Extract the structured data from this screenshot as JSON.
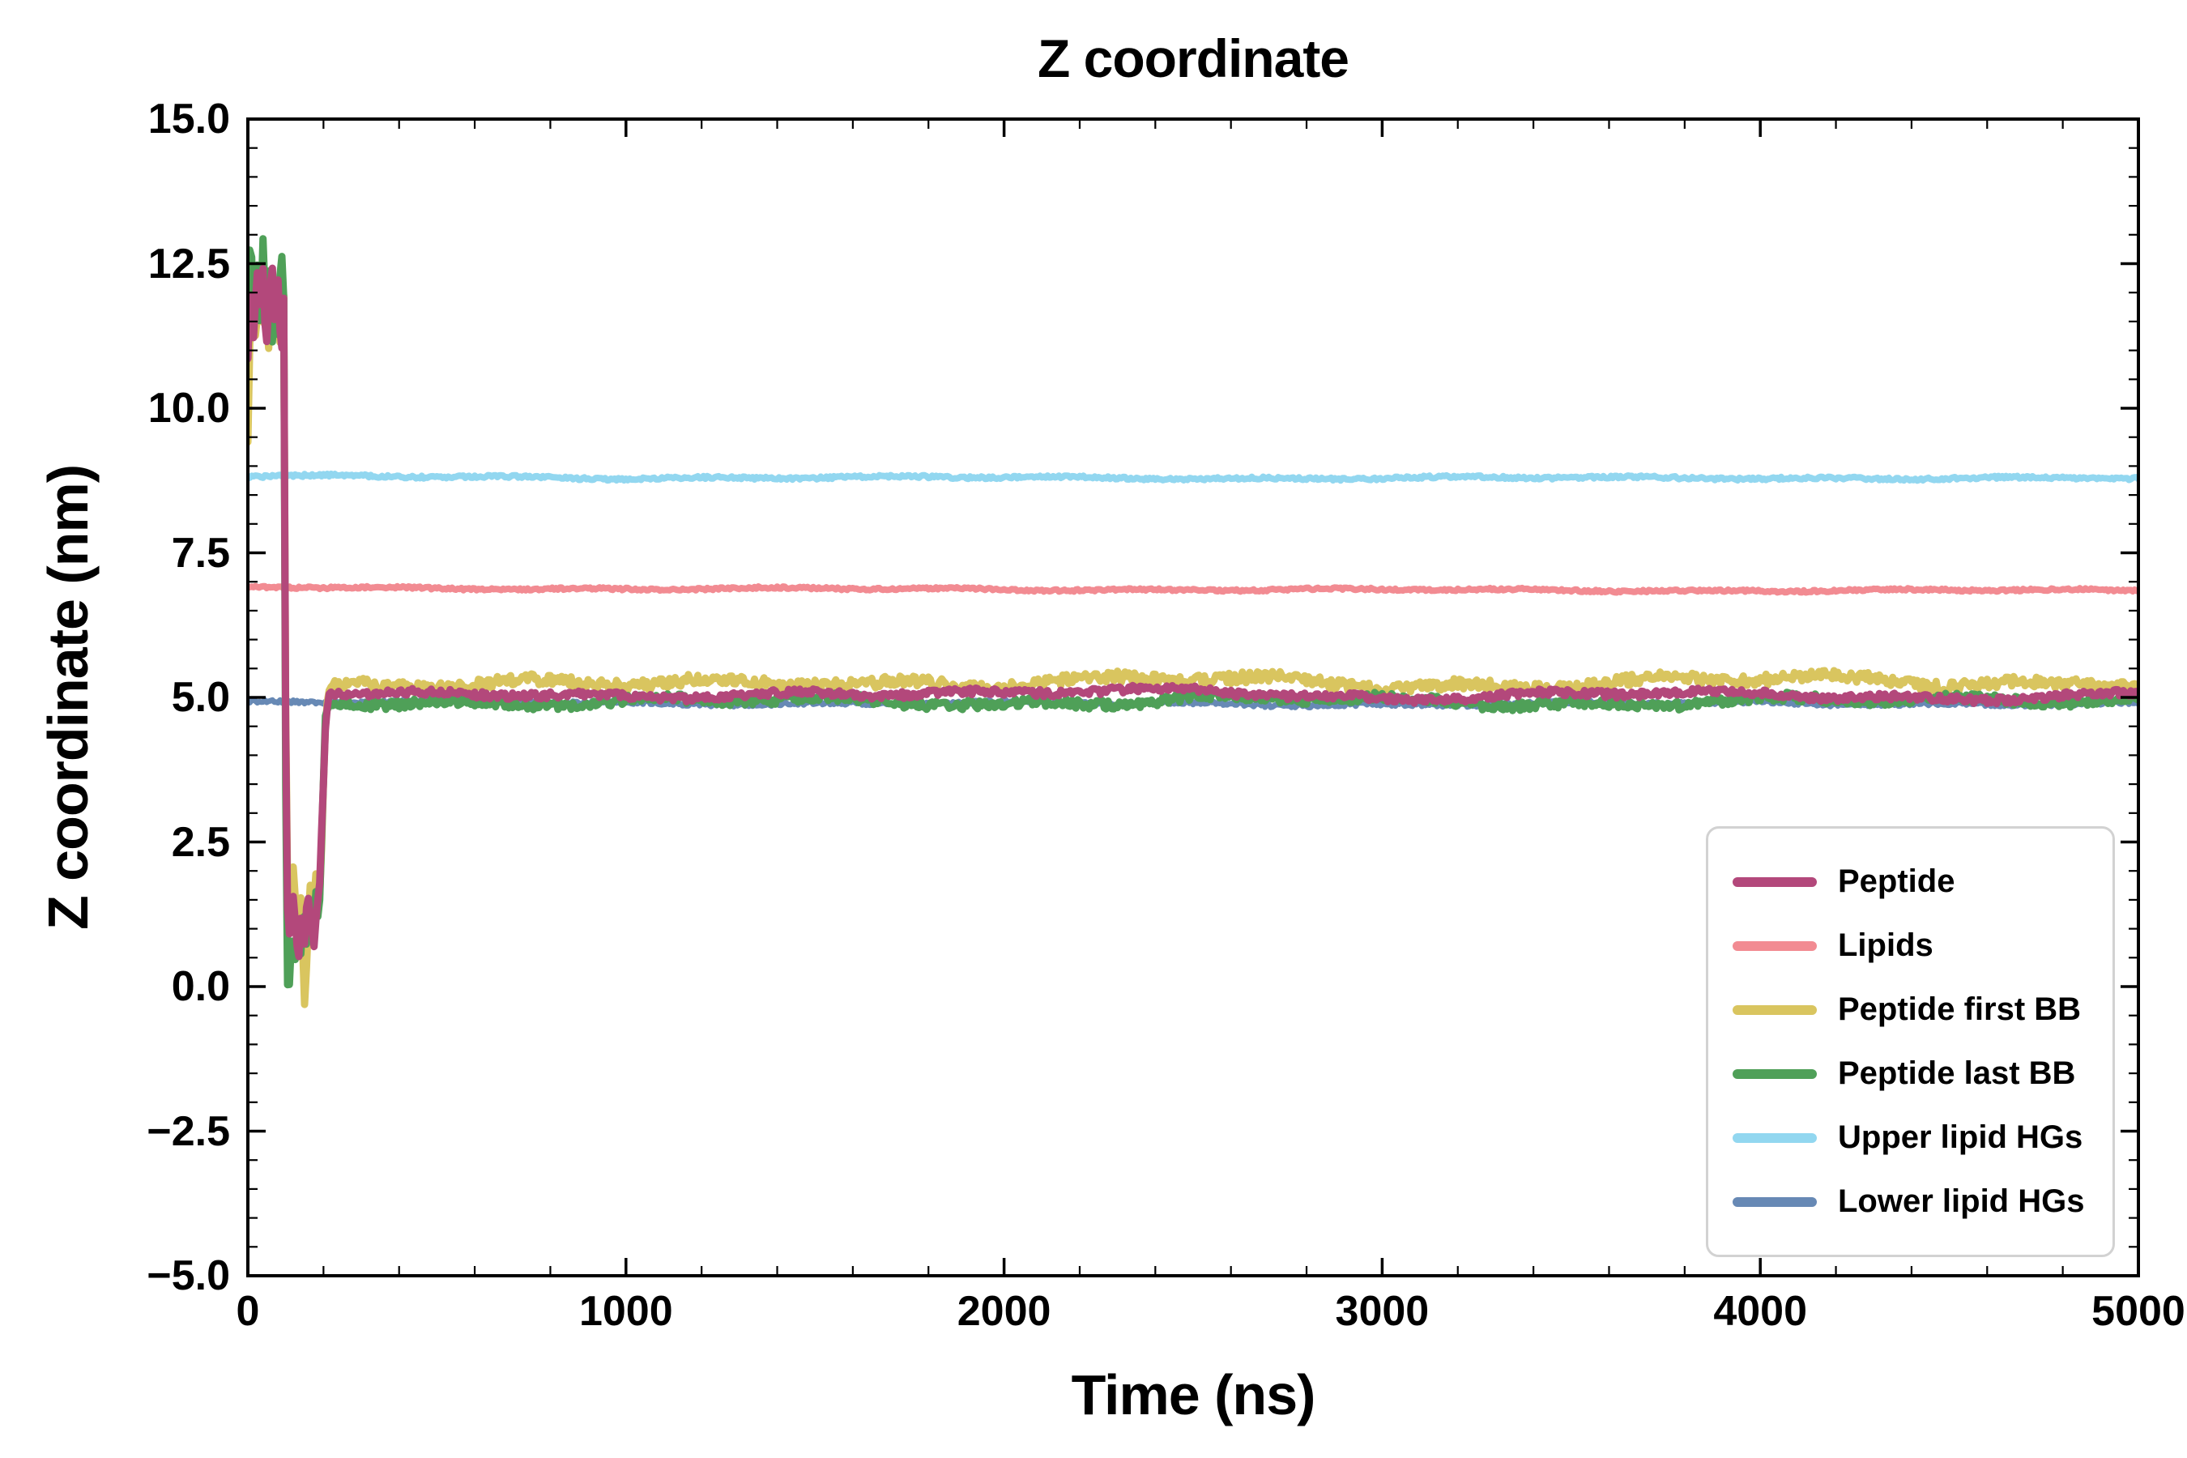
{
  "chart_data": {
    "type": "line",
    "title": "Z coordinate",
    "xlabel": "Time (ns)",
    "ylabel": "Z coordinate (nm)",
    "xlim": [
      0,
      5000
    ],
    "ylim": [
      -5,
      15
    ],
    "x_minor_step": 200,
    "y_minor_step": 0.5,
    "grid": false,
    "legend_position": "lower right",
    "xticks": [
      {
        "v": 0,
        "label": "0"
      },
      {
        "v": 1000,
        "label": "1000"
      },
      {
        "v": 2000,
        "label": "2000"
      },
      {
        "v": 3000,
        "label": "3000"
      },
      {
        "v": 4000,
        "label": "4000"
      },
      {
        "v": 5000,
        "label": "5000"
      }
    ],
    "yticks": [
      {
        "v": 15,
        "label": "15.0"
      },
      {
        "v": 12.5,
        "label": "12.5"
      },
      {
        "v": 10,
        "label": "10.0"
      },
      {
        "v": 7.5,
        "label": "7.5"
      },
      {
        "v": 5,
        "label": "5.0"
      },
      {
        "v": 2.5,
        "label": "2.5"
      },
      {
        "v": 0,
        "label": "0.0"
      },
      {
        "v": -2.5,
        "label": "−2.5"
      },
      {
        "v": -5,
        "label": "−5.0"
      }
    ],
    "series": [
      {
        "name": "Peptide",
        "color": "#b3487b",
        "width": 9,
        "noise": 0.1,
        "seed": 1,
        "zorder": 6,
        "points": [
          [
            0,
            10.9
          ],
          [
            8,
            12.3
          ],
          [
            16,
            11.1
          ],
          [
            24,
            12.5
          ],
          [
            32,
            11.6
          ],
          [
            40,
            12.4
          ],
          [
            48,
            10.9
          ],
          [
            56,
            11.8
          ],
          [
            64,
            12.6
          ],
          [
            72,
            11.2
          ],
          [
            80,
            12.3
          ],
          [
            88,
            10.8
          ],
          [
            95,
            11.9
          ],
          [
            102,
            1.6
          ],
          [
            110,
            0.9
          ],
          [
            118,
            1.8
          ],
          [
            126,
            1.1
          ],
          [
            134,
            0.5
          ],
          [
            142,
            1.5
          ],
          [
            150,
            0.8
          ],
          [
            158,
            1.7
          ],
          [
            166,
            1.2
          ],
          [
            174,
            0.7
          ],
          [
            182,
            1.4
          ],
          [
            190,
            1.9
          ],
          [
            198,
            3.2
          ],
          [
            206,
            4.7
          ],
          [
            214,
            5.1
          ],
          [
            300,
            5.05
          ],
          [
            1000,
            5.0
          ],
          [
            1500,
            5.1
          ],
          [
            2000,
            5.05
          ],
          [
            2500,
            5.12
          ],
          [
            3000,
            5.0
          ],
          [
            3500,
            5.05
          ],
          [
            4000,
            5.05
          ],
          [
            4500,
            5.0
          ],
          [
            5000,
            5.05
          ]
        ]
      },
      {
        "name": "Lipids",
        "color": "#f28b92",
        "width": 8,
        "noise": 0.035,
        "seed": 4,
        "zorder": 3,
        "points": [
          [
            0,
            6.9
          ],
          [
            1000,
            6.88
          ],
          [
            2000,
            6.87
          ],
          [
            3000,
            6.86
          ],
          [
            4000,
            6.85
          ],
          [
            5000,
            6.85
          ]
        ]
      },
      {
        "name": "Peptide first BB",
        "color": "#d9c55f",
        "width": 9,
        "noise": 0.16,
        "seed": 2,
        "zorder": 4,
        "points": [
          [
            0,
            9.6
          ],
          [
            6,
            11.5
          ],
          [
            14,
            12.4
          ],
          [
            22,
            11.0
          ],
          [
            30,
            12.6
          ],
          [
            38,
            11.4
          ],
          [
            46,
            12.2
          ],
          [
            54,
            10.9
          ],
          [
            62,
            12.5
          ],
          [
            70,
            11.6
          ],
          [
            78,
            12.3
          ],
          [
            86,
            11.0
          ],
          [
            95,
            12.0
          ],
          [
            102,
            2.1
          ],
          [
            110,
            1.2
          ],
          [
            118,
            2.3
          ],
          [
            126,
            1.5
          ],
          [
            134,
            0.8
          ],
          [
            142,
            1.9
          ],
          [
            148,
            -0.5
          ],
          [
            156,
            0.4
          ],
          [
            164,
            1.8
          ],
          [
            172,
            1.1
          ],
          [
            180,
            2.0
          ],
          [
            188,
            1.4
          ],
          [
            196,
            2.6
          ],
          [
            204,
            4.4
          ],
          [
            212,
            5.2
          ],
          [
            300,
            5.25
          ],
          [
            1000,
            5.2
          ],
          [
            1500,
            5.3
          ],
          [
            2000,
            5.25
          ],
          [
            2500,
            5.3
          ],
          [
            3000,
            5.22
          ],
          [
            3500,
            5.25
          ],
          [
            4000,
            5.3
          ],
          [
            4500,
            5.25
          ],
          [
            5000,
            5.3
          ]
        ]
      },
      {
        "name": "Peptide last BB",
        "color": "#4fa058",
        "width": 9,
        "noise": 0.13,
        "seed": 3,
        "zorder": 5,
        "points": [
          [
            0,
            12.0
          ],
          [
            8,
            13.0
          ],
          [
            16,
            11.4
          ],
          [
            24,
            12.7
          ],
          [
            32,
            11.0
          ],
          [
            40,
            12.9
          ],
          [
            48,
            11.5
          ],
          [
            56,
            12.4
          ],
          [
            64,
            10.9
          ],
          [
            72,
            12.1
          ],
          [
            80,
            11.3
          ],
          [
            88,
            12.8
          ],
          [
            95,
            11.8
          ],
          [
            102,
            0.2
          ],
          [
            108,
            -0.3
          ],
          [
            116,
            0.9
          ],
          [
            124,
            0.3
          ],
          [
            132,
            1.1
          ],
          [
            140,
            0.5
          ],
          [
            148,
            1.3
          ],
          [
            156,
            0.6
          ],
          [
            164,
            1.5
          ],
          [
            172,
            0.9
          ],
          [
            180,
            1.6
          ],
          [
            188,
            1.0
          ],
          [
            196,
            2.8
          ],
          [
            204,
            4.6
          ],
          [
            212,
            4.95
          ],
          [
            300,
            4.95
          ],
          [
            1000,
            4.9
          ],
          [
            1500,
            4.95
          ],
          [
            2000,
            4.92
          ],
          [
            2500,
            4.95
          ],
          [
            3000,
            4.95
          ],
          [
            3500,
            4.9
          ],
          [
            4000,
            4.95
          ],
          [
            4500,
            4.92
          ],
          [
            5000,
            5.0
          ]
        ]
      },
      {
        "name": "Upper lipid HGs",
        "color": "#92d7f0",
        "width": 8,
        "noise": 0.04,
        "seed": 5,
        "zorder": 2,
        "points": [
          [
            0,
            8.82
          ],
          [
            1000,
            8.8
          ],
          [
            2000,
            8.8
          ],
          [
            3000,
            8.79
          ],
          [
            4000,
            8.8
          ],
          [
            5000,
            8.78
          ]
        ]
      },
      {
        "name": "Lower lipid HGs",
        "color": "#6789b5",
        "width": 7,
        "noise": 0.05,
        "seed": 6,
        "zorder": 1,
        "points": [
          [
            0,
            4.93
          ],
          [
            1000,
            4.9
          ],
          [
            2000,
            4.9
          ],
          [
            3000,
            4.88
          ],
          [
            4000,
            4.9
          ],
          [
            5000,
            4.88
          ]
        ]
      }
    ]
  }
}
